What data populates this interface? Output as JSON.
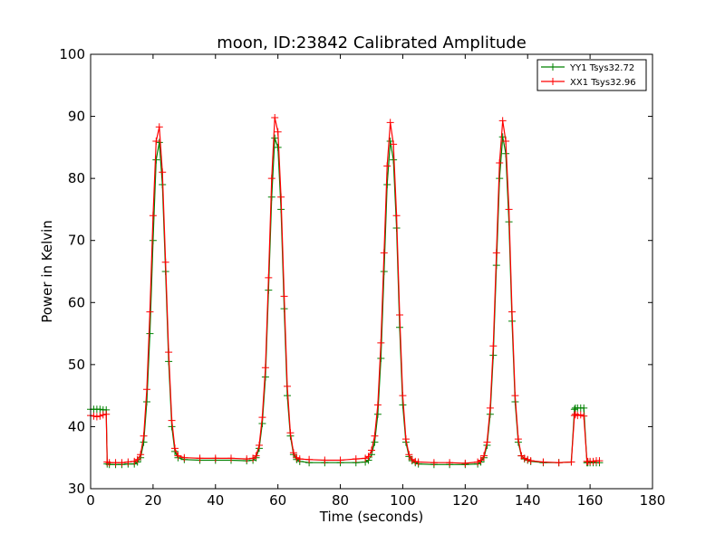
{
  "chart_data": {
    "type": "line",
    "title": "moon, ID:23842 Calibrated Amplitude",
    "xlabel": "Time (seconds)",
    "ylabel": "Power in Kelvin",
    "xlim": [
      0,
      180
    ],
    "ylim": [
      30,
      100
    ],
    "xticks": [
      "0",
      "20",
      "40",
      "60",
      "80",
      "100",
      "120",
      "140",
      "160",
      "180"
    ],
    "yticks": [
      "30",
      "40",
      "50",
      "60",
      "70",
      "80",
      "90",
      "100"
    ],
    "grid": false,
    "legend_position": "top-right",
    "marker": "+",
    "series": [
      {
        "name": "YY1 Tsys32.72",
        "color": "#008000",
        "x": [
          0,
          1,
          2,
          3,
          4,
          5,
          5.3,
          6,
          8,
          10,
          12,
          14,
          15,
          16,
          17,
          18,
          19,
          20,
          21,
          22,
          23,
          24,
          25,
          26,
          27,
          28,
          30,
          35,
          40,
          45,
          50,
          52,
          53,
          54,
          55,
          56,
          57,
          58,
          59,
          60,
          61,
          62,
          63,
          64,
          65,
          66,
          67,
          70,
          75,
          80,
          85,
          88,
          89,
          90,
          91,
          92,
          93,
          94,
          95,
          96,
          97,
          98,
          99,
          100,
          101,
          102,
          103,
          104,
          105,
          110,
          115,
          120,
          124,
          125,
          126,
          127,
          128,
          129,
          130,
          131,
          132,
          133,
          134,
          135,
          136,
          137,
          138,
          139,
          140,
          141,
          145,
          150,
          154,
          155,
          155.3,
          156,
          157,
          158,
          159,
          159.3,
          160,
          161,
          162,
          163
        ],
        "values": [
          42.8,
          42.8,
          42.8,
          42.8,
          42.7,
          42.7,
          34.0,
          33.9,
          33.9,
          33.9,
          34.0,
          34.0,
          34.3,
          35.0,
          37.5,
          44.0,
          55.0,
          70.0,
          83.0,
          85.8,
          79.0,
          65.0,
          50.5,
          40.0,
          36.0,
          35.0,
          34.7,
          34.6,
          34.6,
          34.6,
          34.5,
          34.6,
          35.0,
          36.5,
          40.5,
          48.0,
          62.0,
          77.0,
          86.5,
          85.0,
          75.0,
          59.0,
          45.0,
          38.5,
          35.5,
          34.7,
          34.4,
          34.2,
          34.2,
          34.2,
          34.2,
          34.3,
          34.6,
          35.5,
          37.5,
          42.0,
          51.0,
          65.0,
          79.0,
          86.0,
          83.0,
          72.0,
          56.0,
          43.5,
          37.5,
          35.2,
          34.5,
          34.2,
          34.0,
          33.9,
          33.9,
          33.9,
          34.0,
          34.3,
          35.0,
          37.0,
          42.0,
          51.5,
          66.0,
          80.0,
          86.7,
          84.0,
          73.0,
          57.0,
          44.0,
          37.5,
          35.3,
          34.8,
          34.6,
          34.4,
          34.2,
          34.2,
          34.3,
          42.8,
          43.0,
          43.0,
          43.0,
          43.0,
          34.2,
          34.2,
          34.2,
          34.2,
          34.2,
          34.2
        ]
      },
      {
        "name": "XX1 Tsys32.96",
        "color": "#ff0000",
        "x": [
          0,
          1,
          2,
          3,
          4,
          5,
          5.3,
          6,
          8,
          10,
          12,
          14,
          15,
          16,
          17,
          18,
          19,
          20,
          21,
          22,
          23,
          24,
          25,
          26,
          27,
          28,
          30,
          35,
          40,
          45,
          50,
          52,
          53,
          54,
          55,
          56,
          57,
          58,
          59,
          60,
          61,
          62,
          63,
          64,
          65,
          66,
          67,
          70,
          75,
          80,
          85,
          88,
          89,
          90,
          91,
          92,
          93,
          94,
          95,
          96,
          97,
          98,
          99,
          100,
          101,
          102,
          103,
          104,
          105,
          110,
          115,
          120,
          124,
          125,
          126,
          127,
          128,
          129,
          130,
          131,
          132,
          133,
          134,
          135,
          136,
          137,
          138,
          139,
          140,
          141,
          145,
          150,
          154,
          155,
          155.3,
          156,
          157,
          158,
          159,
          159.3,
          160,
          161,
          162,
          163
        ],
        "values": [
          41.8,
          41.7,
          41.6,
          41.7,
          41.9,
          42.0,
          34.3,
          34.2,
          34.2,
          34.2,
          34.3,
          34.4,
          34.7,
          35.5,
          38.5,
          46.0,
          58.5,
          74.0,
          86.0,
          88.3,
          81.0,
          66.5,
          52.0,
          41.0,
          36.5,
          35.3,
          35.0,
          34.9,
          34.9,
          34.9,
          34.8,
          34.9,
          35.3,
          37.0,
          41.5,
          49.5,
          64.0,
          80.0,
          89.8,
          87.5,
          77.0,
          61.0,
          46.5,
          39.0,
          35.8,
          35.0,
          34.8,
          34.7,
          34.6,
          34.6,
          34.8,
          34.9,
          35.2,
          36.2,
          38.5,
          43.5,
          53.5,
          68.0,
          82.0,
          89.0,
          85.5,
          74.0,
          58.0,
          45.0,
          38.0,
          35.5,
          34.7,
          34.4,
          34.3,
          34.2,
          34.2,
          34.1,
          34.3,
          34.6,
          35.3,
          37.5,
          43.0,
          53.0,
          68.0,
          82.5,
          89.3,
          86.0,
          75.0,
          58.5,
          45.0,
          38.0,
          35.3,
          34.9,
          34.7,
          34.5,
          34.3,
          34.2,
          34.3,
          41.8,
          42.0,
          41.8,
          41.9,
          41.7,
          34.4,
          34.4,
          34.4,
          34.4,
          34.5,
          34.5
        ]
      }
    ]
  }
}
